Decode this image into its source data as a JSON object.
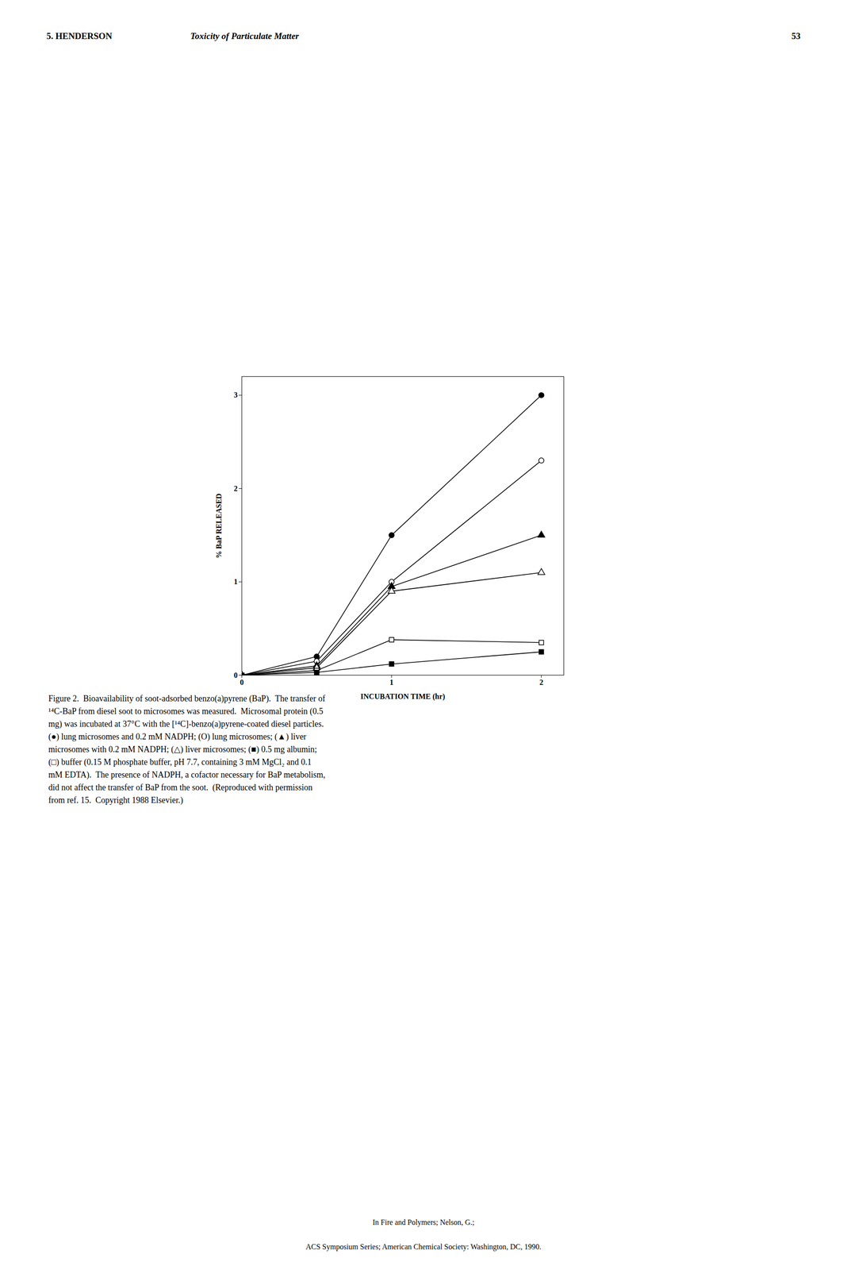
{
  "chart_data": {
    "type": "line",
    "header": [
      "5.  HENDERSON",
      "Toxicity of Particulate Matter",
      "53"
    ],
    "xlabel": "INCUBATION TIME (hr)",
    "ylabel": "% BaP RELEASED",
    "xlim": [
      0,
      2.15
    ],
    "ylim": [
      0,
      3.2
    ],
    "xticks": [
      0,
      1,
      2
    ],
    "yticks": [
      0,
      1,
      2,
      3
    ],
    "grid": false,
    "series": [
      {
        "x": [
          0,
          0.5,
          1.0,
          2.0
        ],
        "values": [
          0,
          0.2,
          1.5,
          3.0
        ],
        "marker": "circle",
        "color": "black",
        "line_style": "solid"
      },
      {
        "x": [
          0,
          0.5,
          1.0,
          2.0
        ],
        "values": [
          0,
          0.15,
          1.0,
          2.3
        ],
        "marker": "circle-open",
        "color": "black",
        "line_style": "solid"
      },
      {
        "x": [
          0,
          0.5,
          1.0,
          2.0
        ],
        "values": [
          0,
          0.1,
          0.95,
          1.5
        ],
        "marker": "triangle",
        "color": "black",
        "line_style": "solid"
      },
      {
        "x": [
          0,
          0.5,
          1.0,
          2.0
        ],
        "values": [
          0,
          0.08,
          0.9,
          1.1
        ],
        "marker": "triangle-open",
        "color": "black",
        "line_style": "solid"
      },
      {
        "x": [
          0,
          0.5,
          1.0,
          2.0
        ],
        "values": [
          0,
          0.05,
          0.38,
          0.35
        ],
        "marker": "square-open",
        "color": "black",
        "line_style": "solid"
      },
      {
        "x": [
          0,
          0.5,
          1.0,
          2.0
        ],
        "values": [
          0,
          0.03,
          0.12,
          0.25
        ],
        "marker": "square",
        "color": "black",
        "line_style": "solid"
      }
    ],
    "caption": "Figure 2.  Bioavailability of soot-adsorbed benzo(a)pyrene (BaP).  The transfer of\n¹⁴C-BaP from diesel soot to microsomes was measured.  Microsomal protein (0.5\nmg) was incubated at 37°C with the [¹⁴C]-benzo(a)pyrene-coated diesel particles.\n(●) lung microsomes and 0.2 mM NADPH; (O) lung microsomes; (▲) liver\nmicrosomes with 0.2 mM NADPH; (△) liver microsomes; (■) 0.5 mg albumin;\n(□) buffer (0.15 M phosphate buffer, pH 7.7, containing 3 mM MgCl₂ and 0.1\nmM EDTA).  The presence of NADPH, a cofactor necessary for BaP metabolism,\ndid not affect the transfer of BaP from the soot.  (Reproduced with permission\nfrom ref. 15.  Copyright 1988 Elsevier.)",
    "footer": [
      "In Fire and Polymers; Nelson, G.;",
      "ACS Symposium Series; American Chemical Society: Washington, DC, 1990."
    ]
  }
}
